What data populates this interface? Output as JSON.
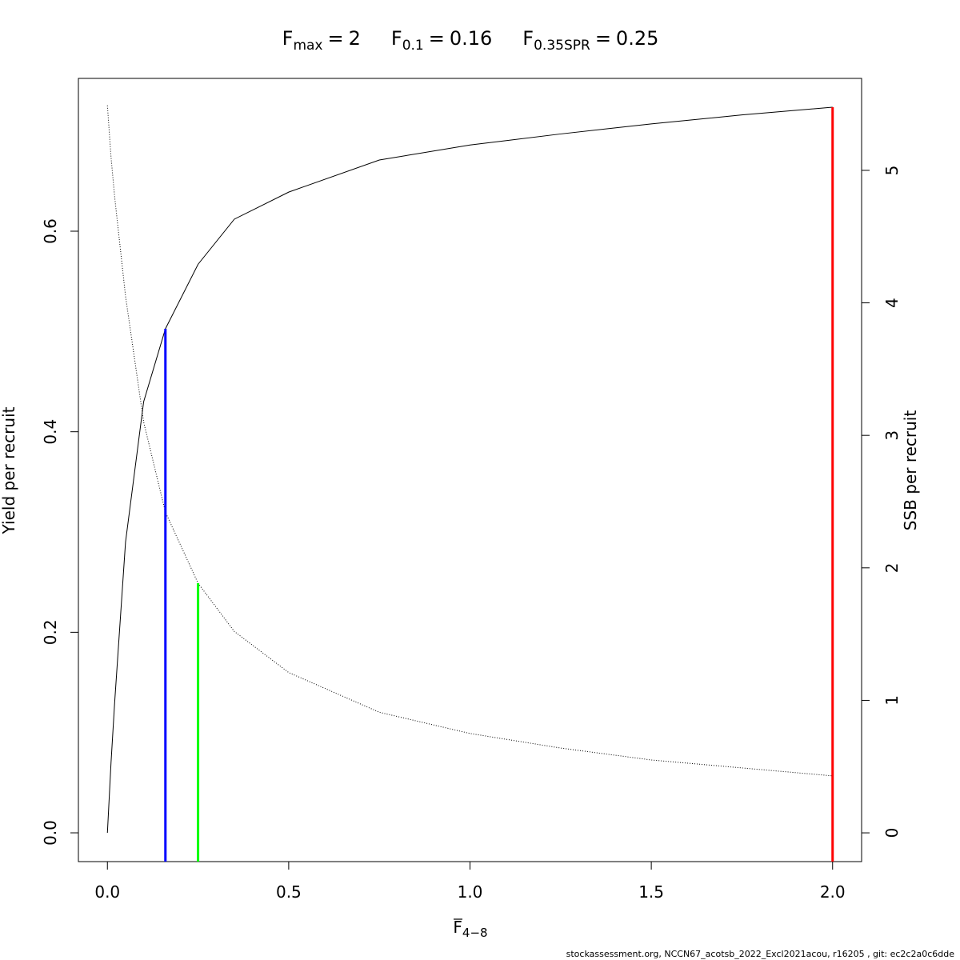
{
  "chart_data": {
    "type": "line",
    "title_parts": [
      {
        "symbol": "F",
        "subscript": "max",
        "operator": "=",
        "value": 2,
        "color": "#ff0000",
        "y_end": 0.7237,
        "axis": "y"
      },
      {
        "symbol": "F",
        "subscript": "0.1",
        "operator": "=",
        "value": 0.16,
        "color": "#0000ff",
        "y_end": 0.5027,
        "axis": "y"
      },
      {
        "symbol": "F",
        "subscript": "0.35SPR",
        "operator": "=",
        "value": 0.25,
        "color": "#00ff00",
        "y_end": 1.884,
        "axis": "y2"
      }
    ],
    "xlabel": {
      "symbol": "F",
      "subscript": "4−8"
    },
    "ylabel": "Yield per recruit",
    "y2label": "SSB per recruit",
    "footer": "stockassessment.org, NCCN67_acotsb_2022_Excl2021acou, r16205 , git: ec2c2a0c6dde",
    "x": [
      0,
      0.01,
      0.02,
      0.05,
      0.1,
      0.16,
      0.25,
      0.35,
      0.5,
      0.75,
      1,
      1.25,
      1.5,
      1.75,
      2
    ],
    "series": [
      {
        "name": "Yield per recruit",
        "color": "#000000",
        "linestyle": "solid",
        "axis": "y",
        "values": [
          0,
          0.07,
          0.13,
          0.29,
          0.43,
          0.5027,
          0.567,
          0.612,
          0.639,
          0.671,
          0.686,
          0.697,
          0.707,
          0.716,
          0.7237
        ]
      },
      {
        "name": "SSB per recruit",
        "color": "#000000",
        "linestyle": "dotted",
        "axis": "y2",
        "values": [
          5.49,
          5.1,
          4.8,
          4.05,
          3.1,
          2.42,
          1.884,
          1.52,
          1.21,
          0.91,
          0.75,
          0.64,
          0.55,
          0.49,
          0.43
        ]
      }
    ],
    "xlim": [
      -0.08,
      2.08
    ],
    "xticks": [
      {
        "value": 0,
        "label": "0.0"
      },
      {
        "value": 0.5,
        "label": "0.5"
      },
      {
        "value": 1,
        "label": "1.0"
      },
      {
        "value": 1.5,
        "label": "1.5"
      },
      {
        "value": 2,
        "label": "2.0"
      }
    ],
    "ylim": [
      -0.0287,
      0.7524
    ],
    "yticks": [
      {
        "value": 0,
        "label": "0.0"
      },
      {
        "value": 0.2,
        "label": "0.2"
      },
      {
        "value": 0.4,
        "label": "0.4"
      },
      {
        "value": 0.6,
        "label": "0.6"
      }
    ],
    "y2lim": [
      -0.217,
      5.694
    ],
    "y2ticks": [
      0,
      1,
      2,
      3,
      4,
      5
    ],
    "grid": false
  }
}
